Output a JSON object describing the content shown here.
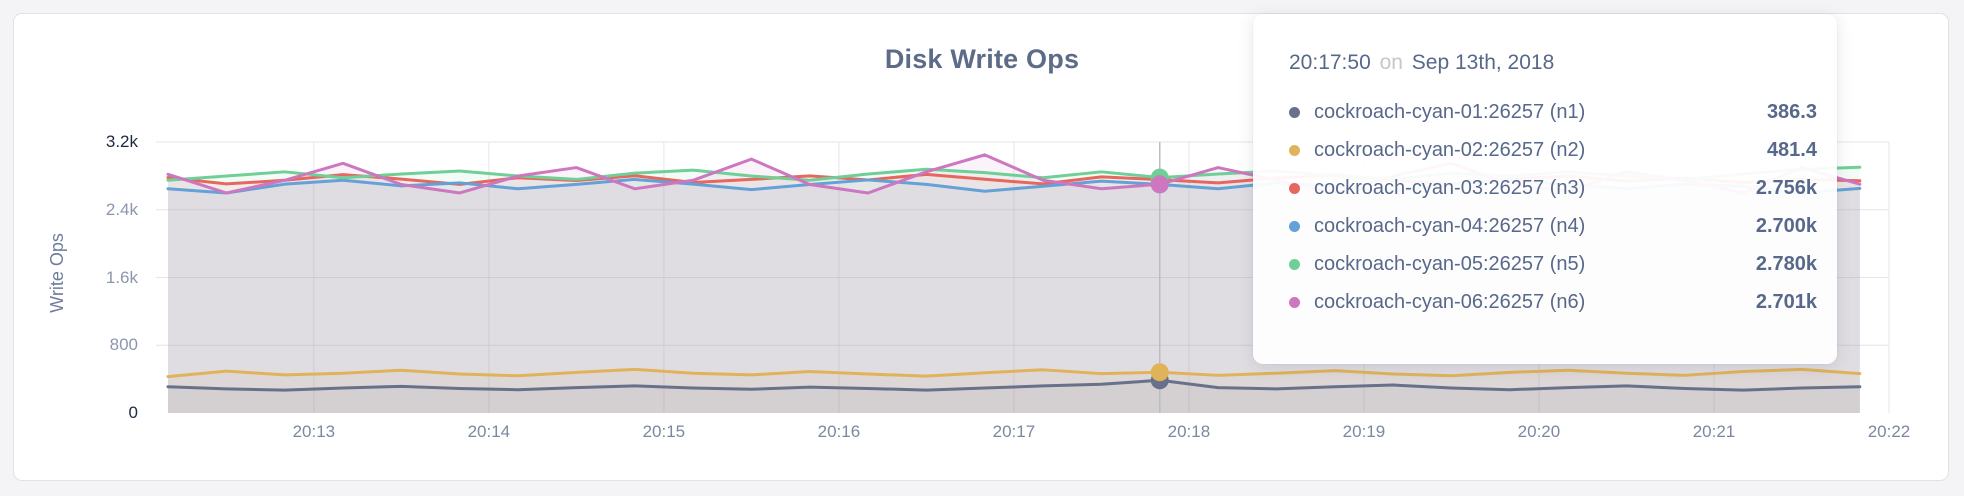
{
  "page": {
    "background": "#f4f4f6"
  },
  "chart_data": {
    "type": "line",
    "title": "Disk Write Ops",
    "xlabel": "",
    "ylabel": "Write Ops",
    "grid": true,
    "legend_position": "tooltip",
    "ylim": [
      0,
      3200
    ],
    "x_domain": [
      "20:12:10",
      "20:22:00"
    ],
    "x_ticks": [
      "20:13",
      "20:14",
      "20:15",
      "20:16",
      "20:17",
      "20:18",
      "20:19",
      "20:20",
      "20:21",
      "20:22"
    ],
    "y_ticks": [
      {
        "value": 0,
        "label": "0",
        "emph": true
      },
      {
        "value": 800,
        "label": "800",
        "emph": false
      },
      {
        "value": 1600,
        "label": "1.6k",
        "emph": false
      },
      {
        "value": 2400,
        "label": "2.4k",
        "emph": false
      },
      {
        "value": 3200,
        "label": "3.2k",
        "emph": true
      }
    ],
    "x": [
      "20:12:10",
      "20:12:30",
      "20:12:50",
      "20:13:10",
      "20:13:30",
      "20:13:50",
      "20:14:10",
      "20:14:30",
      "20:14:50",
      "20:15:10",
      "20:15:30",
      "20:15:50",
      "20:16:10",
      "20:16:30",
      "20:16:50",
      "20:17:10",
      "20:17:30",
      "20:17:50",
      "20:18:10",
      "20:18:30",
      "20:18:50",
      "20:19:10",
      "20:19:30",
      "20:19:50",
      "20:20:10",
      "20:20:30",
      "20:20:50",
      "20:21:10",
      "20:21:30",
      "20:21:50"
    ],
    "series": [
      {
        "name": "cockroach-cyan-01:26257 (n1)",
        "color": "#68718a",
        "values": [
          310,
          285,
          270,
          295,
          315,
          290,
          275,
          300,
          320,
          295,
          280,
          305,
          290,
          270,
          295,
          320,
          340,
          386.3,
          300,
          285,
          310,
          330,
          295,
          275,
          300,
          320,
          290,
          270,
          295,
          310
        ]
      },
      {
        "name": "cockroach-cyan-02:26257 (n2)",
        "color": "#e0b35a",
        "values": [
          430,
          495,
          450,
          470,
          505,
          460,
          440,
          480,
          515,
          470,
          450,
          490,
          460,
          435,
          475,
          510,
          465,
          481.4,
          445,
          470,
          500,
          460,
          440,
          480,
          505,
          470,
          445,
          490,
          515,
          465
        ]
      },
      {
        "name": "cockroach-cyan-03:26257 (n3)",
        "color": "#e5675f",
        "values": [
          2780,
          2705,
          2748,
          2815,
          2762,
          2700,
          2778,
          2745,
          2802,
          2722,
          2758,
          2800,
          2752,
          2818,
          2760,
          2705,
          2788,
          2756,
          2718,
          2775,
          2812,
          2748,
          2702,
          2762,
          2798,
          2738,
          2775,
          2722,
          2758,
          2742
        ]
      },
      {
        "name": "cockroach-cyan-04:26257 (n4)",
        "color": "#64a1d7",
        "values": [
          2648,
          2598,
          2702,
          2748,
          2682,
          2718,
          2648,
          2700,
          2758,
          2702,
          2638,
          2698,
          2752,
          2700,
          2618,
          2678,
          2738,
          2700,
          2648,
          2718,
          2678,
          2618,
          2702,
          2748,
          2698,
          2648,
          2702,
          2678,
          2598,
          2652
        ]
      },
      {
        "name": "cockroach-cyan-05:26257 (n5)",
        "color": "#70cf97",
        "values": [
          2748,
          2798,
          2848,
          2778,
          2822,
          2858,
          2798,
          2758,
          2832,
          2868,
          2798,
          2748,
          2822,
          2878,
          2838,
          2778,
          2848,
          2780,
          2822,
          2858,
          2798,
          2758,
          2832,
          2798,
          2848,
          2798,
          2758,
          2822,
          2878,
          2902
        ]
      },
      {
        "name": "cockroach-cyan-06:26257 (n6)",
        "color": "#cc77bf",
        "values": [
          2818,
          2598,
          2748,
          2948,
          2698,
          2598,
          2798,
          2898,
          2648,
          2748,
          2998,
          2698,
          2598,
          2848,
          3048,
          2748,
          2648,
          2701,
          2898,
          2748,
          2598,
          2798,
          2948,
          2698,
          2618,
          2848,
          2748,
          2598,
          2898,
          2702
        ]
      }
    ]
  },
  "tooltip": {
    "time": "20:17:50",
    "connector": "on",
    "date": "Sep 13th, 2018",
    "rows": [
      {
        "label": "cockroach-cyan-01:26257 (n1)",
        "value": "386.3"
      },
      {
        "label": "cockroach-cyan-02:26257 (n2)",
        "value": "481.4"
      },
      {
        "label": "cockroach-cyan-03:26257 (n3)",
        "value": "2.756k"
      },
      {
        "label": "cockroach-cyan-04:26257 (n4)",
        "value": "2.700k"
      },
      {
        "label": "cockroach-cyan-05:26257 (n5)",
        "value": "2.780k"
      },
      {
        "label": "cockroach-cyan-06:26257 (n6)",
        "value": "2.701k"
      }
    ]
  }
}
